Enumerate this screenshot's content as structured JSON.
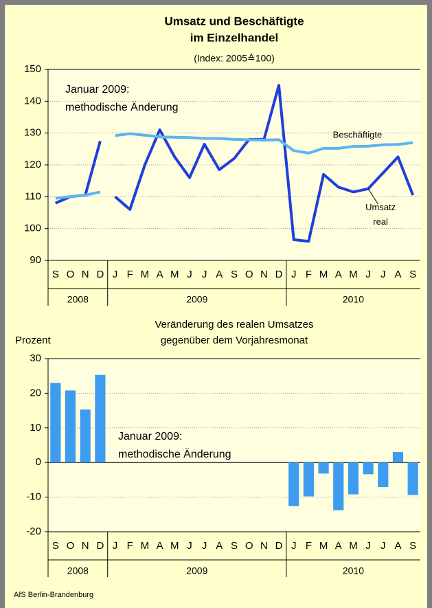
{
  "chart_data": [
    {
      "type": "line",
      "title": [
        "Umsatz und Beschäftigte",
        "im Einzelhandel"
      ],
      "subtitle": "(Index: 2005≙100)",
      "annotation": [
        "Januar 2009:",
        "methodische Änderung"
      ],
      "groups": [
        {
          "label": "2008",
          "categories": [
            "S",
            "O",
            "N",
            "D"
          ]
        },
        {
          "label": "2009",
          "categories": [
            "J",
            "F",
            "M",
            "A",
            "M",
            "J",
            "J",
            "A",
            "S",
            "O",
            "N",
            "D"
          ]
        },
        {
          "label": "2010",
          "categories": [
            "J",
            "F",
            "M",
            "A",
            "M",
            "J",
            "J",
            "A",
            "S"
          ]
        }
      ],
      "ylim": [
        90,
        150
      ],
      "yticks": [
        90,
        100,
        110,
        120,
        130,
        140,
        150
      ],
      "grid": true,
      "series": [
        {
          "color": "#1e3fdc",
          "values": [
            108,
            110,
            110.5,
            127.5,
            null,
            null,
            null,
            null,
            null,
            null,
            null,
            null,
            null,
            null,
            null,
            null,
            null,
            null,
            null,
            null,
            null,
            null,
            null,
            null,
            null
          ]
        },
        {
          "label": [
            "Umsatz",
            "real"
          ],
          "color": "#1e3fdc",
          "values": [
            null,
            null,
            null,
            null,
            110,
            106,
            120,
            131,
            122.5,
            116,
            126.5,
            118.5,
            122,
            128,
            128,
            145,
            96.5,
            96,
            117,
            113,
            111.5,
            112.5,
            117.5,
            122.5,
            110.5
          ]
        },
        {
          "color": "#5cb4f0",
          "values": [
            109.5,
            110,
            110.5,
            111.5,
            null,
            null,
            null,
            null,
            null,
            null,
            null,
            null,
            null,
            null,
            null,
            null,
            null,
            null,
            null,
            null,
            null,
            null,
            null,
            null,
            null
          ]
        },
        {
          "label": [
            "Beschäftigte"
          ],
          "color": "#5cb4f0",
          "values": [
            null,
            null,
            null,
            null,
            129.2,
            129.8,
            129.3,
            128.8,
            128.7,
            128.6,
            128.3,
            128.3,
            128,
            127.9,
            127.8,
            127.9,
            124.5,
            123.7,
            125.2,
            125.2,
            125.8,
            125.9,
            126.3,
            126.4,
            127
          ]
        }
      ]
    },
    {
      "type": "bar",
      "title": [
        "Veränderung des realen Umsatzes",
        "gegenüber dem Vorjahresmonat"
      ],
      "ylabel": "Prozent",
      "annotation": [
        "Januar 2009:",
        "methodische Änderung"
      ],
      "groups": [
        {
          "label": "2008",
          "categories": [
            "S",
            "O",
            "N",
            "D"
          ]
        },
        {
          "label": "2009",
          "categories": [
            "J",
            "F",
            "M",
            "A",
            "M",
            "J",
            "J",
            "A",
            "S",
            "O",
            "N",
            "D"
          ]
        },
        {
          "label": "2010",
          "categories": [
            "J",
            "F",
            "M",
            "A",
            "M",
            "J",
            "J",
            "A",
            "S"
          ]
        }
      ],
      "ylim": [
        -20,
        30
      ],
      "yticks": [
        -20,
        -10,
        0,
        10,
        20,
        30
      ],
      "grid": true,
      "color": "#3d9cf0",
      "values": [
        23,
        20.8,
        15.3,
        25.3,
        null,
        null,
        null,
        null,
        null,
        null,
        null,
        null,
        null,
        null,
        null,
        null,
        -12.6,
        -9.8,
        -3.2,
        -13.8,
        -9.2,
        -3.4,
        -7.1,
        3,
        -9.4
      ]
    }
  ],
  "footer": "AfS Berlin-Brandenburg"
}
